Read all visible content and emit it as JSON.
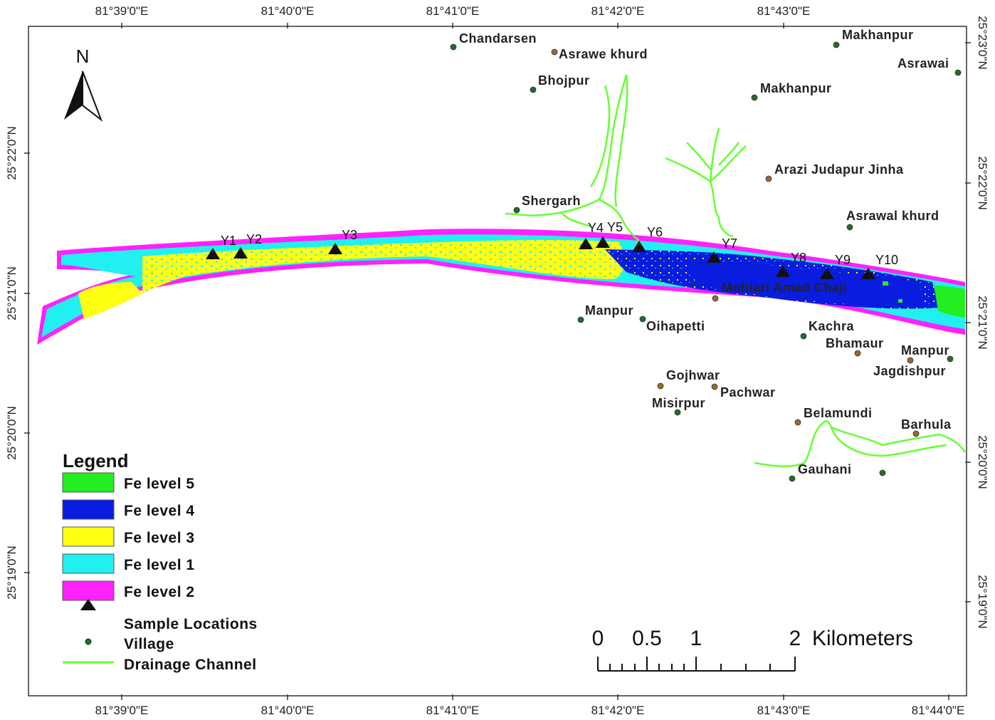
{
  "colors": {
    "fe_level_5": "#22ee22",
    "fe_level_4": "#0a1ce0",
    "fe_level_3": "#ffff11",
    "fe_level_1": "#22f0f0",
    "fe_level_2": "#ff22ff",
    "drainage": "#66ff33",
    "village_green": "#1f6e2a",
    "village_brown": "#9b6a2a",
    "sample_marker": "#111111"
  },
  "graticule": {
    "lon_top": [
      "81°39'0\"E",
      "81°40'0\"E",
      "81°41'0\"E",
      "81°42'0\"E",
      "81°43'0\"E"
    ],
    "lon_bottom": [
      "81°39'0\"E",
      "81°40'0\"E",
      "81°41'0\"E",
      "81°42'0\"E",
      "81°43'0\"E",
      "81°44'0\"E"
    ],
    "lat_left": [
      "25°22'0\"N",
      "25°21'0\"N",
      "25°20'0\"N",
      "25°19'0\"N"
    ],
    "lat_right": [
      "25°23'0\"N",
      "25°22'0\"N",
      "25°21'0\"N",
      "25°20'0\"N",
      "25°19'0\"N"
    ]
  },
  "north_arrow": {
    "label": "N",
    "icon": "north-arrow-icon"
  },
  "samples": [
    "Y1",
    "Y2",
    "Y3",
    "Y4",
    "Y5",
    "Y6",
    "Y7",
    "Y8",
    "Y9",
    "Y10"
  ],
  "villages": [
    "Chandarsen",
    "Asrawe khurd",
    "Makhanpur",
    "Asrawai",
    "Bhojpur",
    "Makhanpur",
    "Arazi Judapur Jinha",
    "Shergarh",
    "Asrawal khurd",
    "Manpur",
    "Oihapetti",
    "Mohiari Amad Chaji",
    "Kachra",
    "Bhamaur",
    "Manpur",
    "Jagdishpur",
    "Gojhwar",
    "Pachwar",
    "Misirpur",
    "Belamundi",
    "Barhula",
    "Gauhani"
  ],
  "legend": {
    "title": "Legend",
    "classes": [
      {
        "label": "Fe level 5",
        "color": "#22ee22"
      },
      {
        "label": "Fe level 4",
        "color": "#0a1ce0"
      },
      {
        "label": "Fe level 3",
        "color": "#ffff11"
      },
      {
        "label": "Fe level 1",
        "color": "#22f0f0"
      },
      {
        "label": "Fe level 2",
        "color": "#ff22ff"
      }
    ],
    "sample_locations": "Sample Locations",
    "village": "Village",
    "drainage_channel": "Drainage Channel"
  },
  "scale_bar": {
    "ticks": [
      "0",
      "0.5",
      "1",
      "2"
    ],
    "unit": "Kilometers"
  }
}
